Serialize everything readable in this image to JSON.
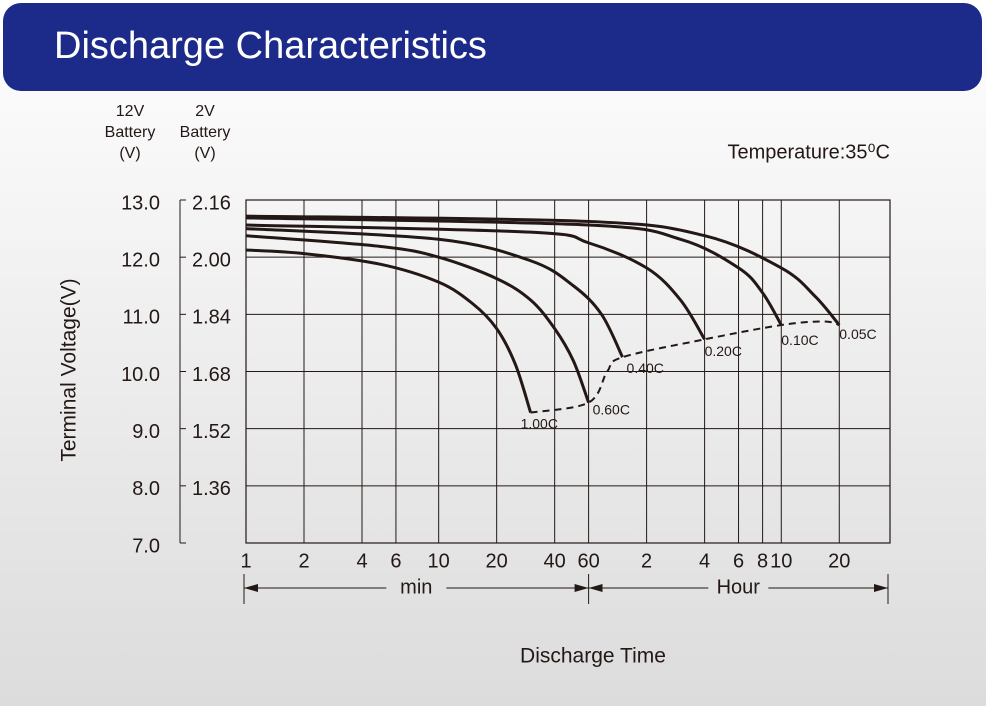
{
  "chart_data": {
    "type": "line",
    "title": "Discharge Characteristics",
    "temperature": "Temperature:35⁰C",
    "y2_header": [
      "12V",
      "Battery",
      "(V)"
    ],
    "y_header": [
      "2V",
      "Battery",
      "(V)"
    ],
    "y_label": "Terminal Voltage(V)",
    "x_label": "Discharge Time",
    "x_units": [
      "min",
      "Hour"
    ],
    "log_x": true,
    "grid": true,
    "xlim": [
      1,
      2200
    ],
    "xticks": [
      1,
      2,
      4,
      6,
      10,
      20,
      40,
      60,
      {
        "value": 120,
        "label": "2"
      },
      {
        "value": 240,
        "label": "4"
      },
      {
        "value": 360,
        "label": "6"
      },
      {
        "value": 480,
        "label": "8"
      },
      {
        "value": 600,
        "label": "10"
      },
      {
        "value": 1200,
        "label": "20"
      }
    ],
    "ylim": [
      1.2,
      2.16
    ],
    "yticks": [
      2.16,
      {
        "value": 2.0,
        "label": "2.00"
      },
      1.84,
      1.68,
      1.52,
      1.36
    ],
    "y2lim": [
      7,
      13
    ],
    "y2ticks": [
      {
        "value": 13,
        "label": "13.0"
      },
      {
        "value": 12,
        "label": "12.0"
      },
      {
        "value": 11,
        "label": "11.0"
      },
      {
        "value": 10,
        "label": "10.0"
      },
      {
        "value": 9,
        "label": "9.0"
      },
      {
        "value": 8,
        "label": "8.0"
      },
      {
        "value": 7,
        "label": "7.0"
      }
    ],
    "series": [
      {
        "name": "1.00C",
        "color": "#231815",
        "x": [
          1,
          2,
          5,
          10,
          15,
          20,
          25,
          30
        ],
        "values": [
          2.02,
          2.01,
          1.98,
          1.93,
          1.87,
          1.8,
          1.7,
          1.565
        ]
      },
      {
        "name": "0.60C",
        "color": "#231815",
        "x": [
          1,
          5,
          10,
          20,
          30,
          40,
          50,
          60
        ],
        "values": [
          2.06,
          2.03,
          2.0,
          1.94,
          1.88,
          1.8,
          1.71,
          1.593
        ]
      },
      {
        "name": "0.40C",
        "color": "#231815",
        "x": [
          1,
          10,
          30,
          50,
          70,
          90
        ],
        "values": [
          2.08,
          2.05,
          1.99,
          1.92,
          1.84,
          1.72
        ]
      },
      {
        "name": "0.20C",
        "color": "#231815",
        "x": [
          1,
          30,
          60,
          120,
          180,
          240
        ],
        "values": [
          2.09,
          2.07,
          2.04,
          1.97,
          1.88,
          1.77
        ]
      },
      {
        "name": "0.10C",
        "color": "#231815",
        "x": [
          1,
          60,
          180,
          360,
          480,
          600
        ],
        "values": [
          2.11,
          2.09,
          2.05,
          1.97,
          1.9,
          1.81
        ]
      },
      {
        "name": "0.05C",
        "color": "#231815",
        "x": [
          1,
          60,
          240,
          600,
          900,
          1200
        ],
        "values": [
          2.115,
          2.1,
          2.06,
          1.97,
          1.89,
          1.81
        ]
      }
    ],
    "end_voltage_line": {
      "color": "#231815",
      "x": [
        30,
        60,
        75,
        90,
        240,
        600,
        1000,
        1200
      ],
      "values": [
        1.565,
        1.593,
        1.68,
        1.72,
        1.77,
        1.81,
        1.82,
        1.81
      ]
    }
  }
}
